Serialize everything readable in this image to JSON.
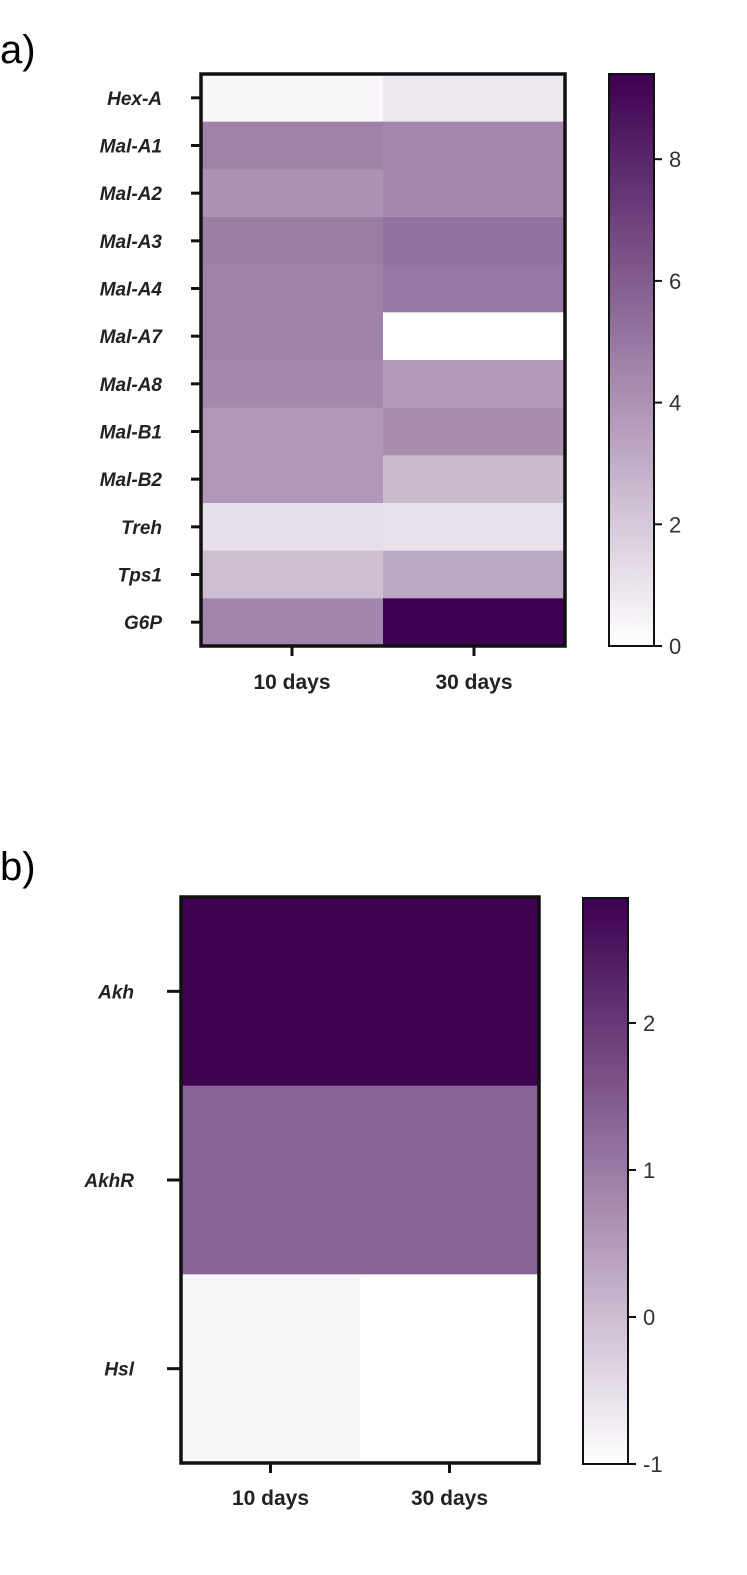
{
  "chart_data": [
    {
      "panel": "a)",
      "type": "heatmap",
      "rows": [
        "Hex-A",
        "Mal-A1",
        "Mal-A2",
        "Mal-A3",
        "Mal-A4",
        "Mal-A7",
        "Mal-A8",
        "Mal-B1",
        "Mal-B2",
        "Treh",
        "Tps1",
        "G6P"
      ],
      "columns": [
        "10 days",
        "30 days"
      ],
      "values": [
        [
          0.3,
          0.8
        ],
        [
          4.6,
          4.4
        ],
        [
          4.0,
          4.4
        ],
        [
          4.8,
          5.2
        ],
        [
          4.6,
          5.0
        ],
        [
          4.6,
          0.0
        ],
        [
          4.4,
          3.7
        ],
        [
          3.8,
          4.2
        ],
        [
          3.8,
          2.5
        ],
        [
          1.2,
          1.1
        ],
        [
          2.4,
          3.2
        ],
        [
          4.5,
          9.4
        ]
      ],
      "colorbar": {
        "min": 0,
        "max": 9.4,
        "ticks": [
          0,
          2,
          4,
          6,
          8
        ]
      },
      "colors": {
        "low": "#ffffff",
        "high": "#3d0050"
      }
    },
    {
      "panel": "b)",
      "type": "heatmap",
      "rows": [
        "Akh",
        "AkhR",
        "Hsl"
      ],
      "columns": [
        "10 days",
        "30 days"
      ],
      "values": [
        [
          2.8,
          2.8
        ],
        [
          1.35,
          1.35
        ],
        [
          -0.85,
          -1.0
        ]
      ],
      "colorbar": {
        "min": -1,
        "max": 2.85,
        "ticks": [
          -1,
          0,
          1,
          2
        ]
      },
      "colors": {
        "low": "#ffffff",
        "high": "#3d0050"
      }
    }
  ]
}
